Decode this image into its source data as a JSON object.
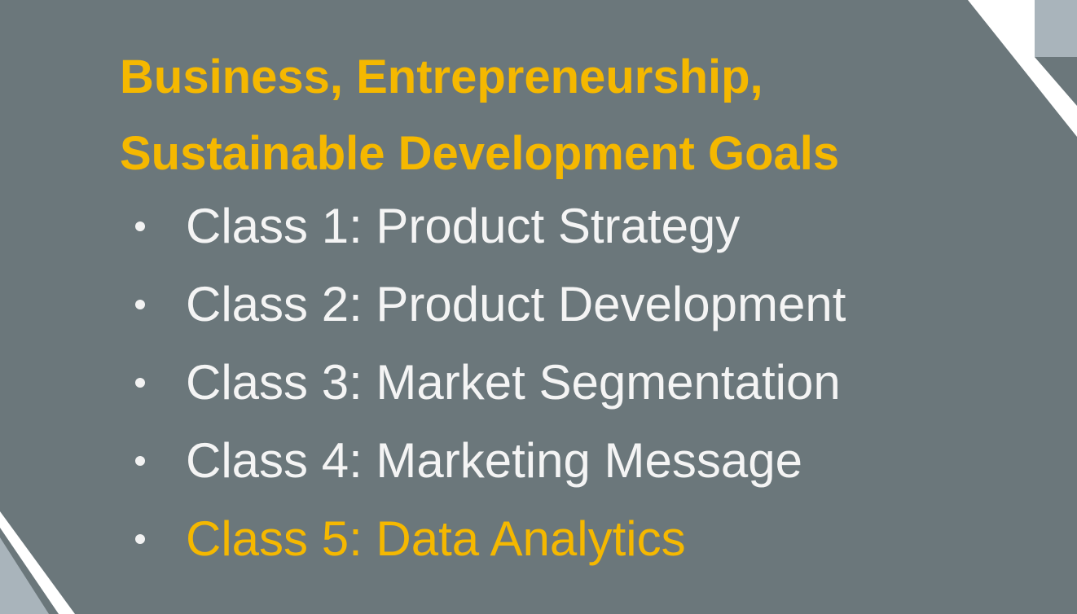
{
  "slide": {
    "title_lines": [
      "Business, Entrepreneurship,",
      "Sustainable Development Goals"
    ],
    "classes": [
      {
        "label": "Class 1: Product Strategy",
        "highlighted": false
      },
      {
        "label": "Class 2: Product Development",
        "highlighted": false
      },
      {
        "label": "Class 3: Market Segmentation",
        "highlighted": false
      },
      {
        "label": "Class 4: Marketing Message",
        "highlighted": false
      },
      {
        "label": "Class 5: Data Analytics",
        "highlighted": true
      }
    ]
  },
  "colors": {
    "background": "#6b777b",
    "accent": "#f5b800",
    "text": "#f4f4f4",
    "corner_stripe": "#ffffff",
    "corner_fill": "#a9b4bb"
  }
}
